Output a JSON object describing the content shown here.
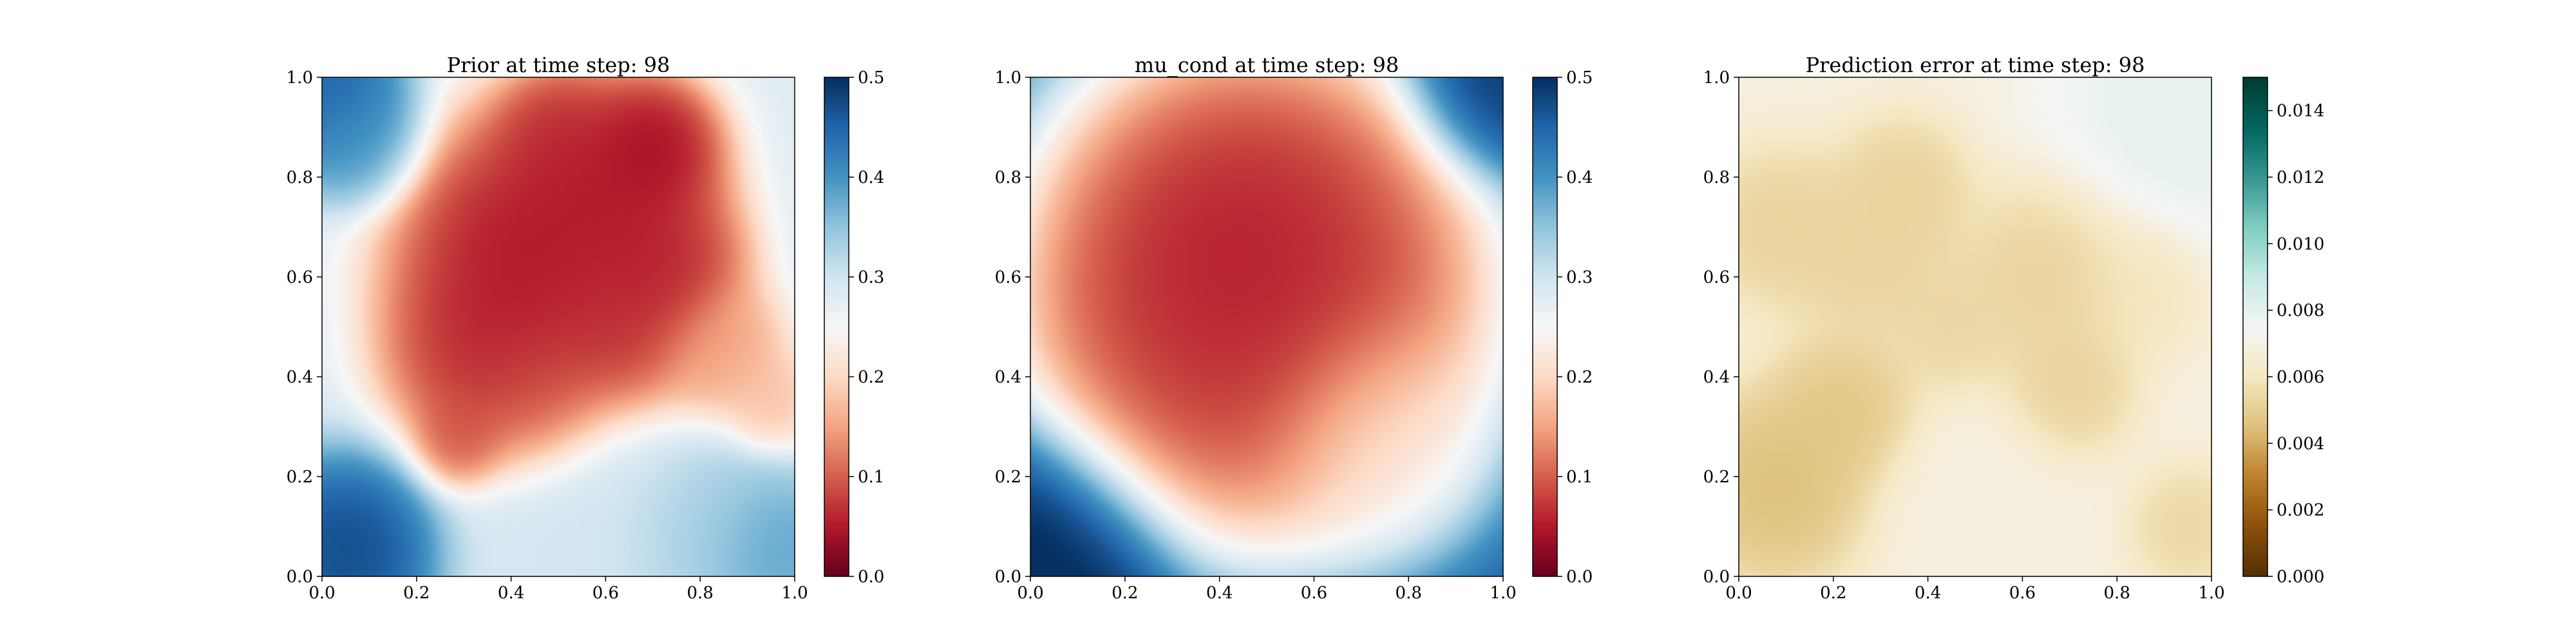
{
  "chart_data": [
    {
      "type": "heatmap",
      "title": "Prior at time step: 98",
      "xlabel": "",
      "ylabel": "",
      "xlim": [
        0.0,
        1.0
      ],
      "ylim": [
        0.0,
        1.0
      ],
      "x_ticks": [
        "0.0",
        "0.2",
        "0.4",
        "0.6",
        "0.8",
        "1.0"
      ],
      "y_ticks": [
        "0.0",
        "0.2",
        "0.4",
        "0.6",
        "0.8",
        "1.0"
      ],
      "colormap": "RdBu",
      "color_range": [
        0.0,
        0.5
      ],
      "colorbar_ticks": [
        "0.0",
        "0.1",
        "0.2",
        "0.3",
        "0.4",
        "0.5"
      ],
      "grid": false,
      "features": {
        "base": 0.28,
        "blobs": [
          {
            "x": 0.42,
            "y": 0.66,
            "value": 0.02,
            "spread": 0.14
          },
          {
            "x": 0.62,
            "y": 0.78,
            "value": 0.03,
            "spread": 0.11
          },
          {
            "x": 0.7,
            "y": 0.86,
            "value": 0.02,
            "spread": 0.07
          },
          {
            "x": 0.5,
            "y": 0.88,
            "value": 0.05,
            "spread": 0.07
          },
          {
            "x": 0.72,
            "y": 0.62,
            "value": 0.04,
            "spread": 0.09
          },
          {
            "x": 0.35,
            "y": 0.45,
            "value": 0.04,
            "spread": 0.11
          },
          {
            "x": 0.45,
            "y": 0.35,
            "value": 0.08,
            "spread": 0.08
          },
          {
            "x": 0.3,
            "y": 0.28,
            "value": 0.08,
            "spread": 0.05
          },
          {
            "x": 0.6,
            "y": 0.5,
            "value": 0.05,
            "spread": 0.1
          },
          {
            "x": 0.85,
            "y": 0.45,
            "value": 0.14,
            "spread": 0.07
          },
          {
            "x": 0.95,
            "y": 0.35,
            "value": 0.17,
            "spread": 0.05
          },
          {
            "x": 0.05,
            "y": 0.05,
            "value": 0.5,
            "spread": 0.1
          },
          {
            "x": 0.02,
            "y": 0.97,
            "value": 0.48,
            "spread": 0.08
          },
          {
            "x": 0.07,
            "y": 0.88,
            "value": 0.4,
            "spread": 0.07
          },
          {
            "x": 0.95,
            "y": 0.05,
            "value": 0.4,
            "spread": 0.08
          },
          {
            "x": 0.82,
            "y": 0.08,
            "value": 0.34,
            "spread": 0.1
          },
          {
            "x": 0.55,
            "y": 0.12,
            "value": 0.3,
            "spread": 0.12
          }
        ]
      }
    },
    {
      "type": "heatmap",
      "title": "mu_cond at time step: 98",
      "xlabel": "",
      "ylabel": "",
      "xlim": [
        0.0,
        1.0
      ],
      "ylim": [
        0.0,
        1.0
      ],
      "x_ticks": [
        "0.0",
        "0.2",
        "0.4",
        "0.6",
        "0.8",
        "1.0"
      ],
      "y_ticks": [
        "0.0",
        "0.2",
        "0.4",
        "0.6",
        "0.8",
        "1.0"
      ],
      "colormap": "RdBu",
      "color_range": [
        0.0,
        0.5
      ],
      "colorbar_ticks": [
        "0.0",
        "0.1",
        "0.2",
        "0.3",
        "0.4",
        "0.5"
      ],
      "grid": false,
      "features": {
        "base": 0.46,
        "blobs": [
          {
            "x": 0.45,
            "y": 0.65,
            "value": 0.0,
            "spread": 0.22
          },
          {
            "x": 0.55,
            "y": 0.55,
            "value": 0.06,
            "spread": 0.22
          },
          {
            "x": 0.4,
            "y": 0.5,
            "value": 0.05,
            "spread": 0.2
          },
          {
            "x": 0.72,
            "y": 0.3,
            "value": 0.23,
            "spread": 0.12
          },
          {
            "x": 0.0,
            "y": 0.0,
            "value": 0.52,
            "spread": 0.15
          },
          {
            "x": 1.0,
            "y": 1.0,
            "value": 0.5,
            "spread": 0.1
          }
        ]
      }
    },
    {
      "type": "heatmap",
      "title": "Prediction error at time step: 98",
      "xlabel": "",
      "ylabel": "",
      "xlim": [
        0.0,
        1.0
      ],
      "ylim": [
        0.0,
        1.0
      ],
      "x_ticks": [
        "0.0",
        "0.2",
        "0.4",
        "0.6",
        "0.8",
        "1.0"
      ],
      "y_ticks": [
        "0.0",
        "0.2",
        "0.4",
        "0.6",
        "0.8",
        "1.0"
      ],
      "colormap": "BrBG",
      "color_range": [
        0.0,
        0.015
      ],
      "colorbar_ticks": [
        "0.000",
        "0.002",
        "0.004",
        "0.006",
        "0.008",
        "0.010",
        "0.012",
        "0.014"
      ],
      "grid": false,
      "features": {
        "base": 0.0068,
        "blobs": [
          {
            "x": 0.08,
            "y": 0.18,
            "value": 0.0042,
            "spread": 0.1
          },
          {
            "x": 0.22,
            "y": 0.33,
            "value": 0.0045,
            "spread": 0.08
          },
          {
            "x": 0.08,
            "y": 0.7,
            "value": 0.005,
            "spread": 0.08
          },
          {
            "x": 0.28,
            "y": 0.65,
            "value": 0.005,
            "spread": 0.1
          },
          {
            "x": 0.35,
            "y": 0.78,
            "value": 0.005,
            "spread": 0.07
          },
          {
            "x": 0.45,
            "y": 0.5,
            "value": 0.0052,
            "spread": 0.07
          },
          {
            "x": 0.65,
            "y": 0.6,
            "value": 0.005,
            "spread": 0.1
          },
          {
            "x": 0.7,
            "y": 0.38,
            "value": 0.005,
            "spread": 0.07
          },
          {
            "x": 0.95,
            "y": 0.1,
            "value": 0.0052,
            "spread": 0.06
          },
          {
            "x": 0.85,
            "y": 0.58,
            "value": 0.0058,
            "spread": 0.07
          },
          {
            "x": 0.95,
            "y": 0.95,
            "value": 0.0082,
            "spread": 0.15
          },
          {
            "x": 0.5,
            "y": 0.15,
            "value": 0.0068,
            "spread": 0.1
          }
        ]
      }
    }
  ]
}
